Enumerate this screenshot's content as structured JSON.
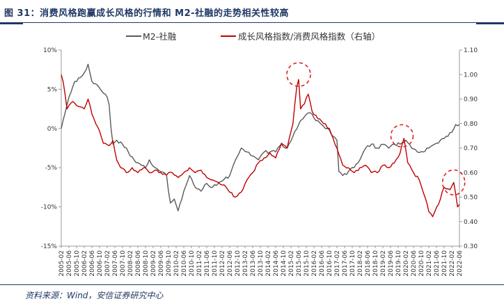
{
  "figure": {
    "title": "图 31：消费风格跑赢成长风格的行情和 M2-社融的走势相关性较高",
    "source": "资料来源：Wind，安信证券研究中心"
  },
  "chart_data": {
    "type": "line",
    "y_left": {
      "ylim": [
        -0.15,
        0.1
      ],
      "ticks": [
        "-15%",
        "-10%",
        "-5%",
        "0%",
        "5%",
        "10%"
      ],
      "tick_values": [
        -0.15,
        -0.1,
        -0.05,
        0.0,
        0.05,
        0.1
      ]
    },
    "y_right": {
      "ylim": [
        0.3,
        1.1
      ],
      "ticks": [
        "0.30",
        "0.40",
        "0.50",
        "0.60",
        "0.70",
        "0.80",
        "0.90",
        "1.00",
        "1.10"
      ],
      "tick_values": [
        0.3,
        0.4,
        0.5,
        0.6,
        0.7,
        0.8,
        0.9,
        1.0,
        1.1
      ]
    },
    "x_ticks": [
      "2005-02",
      "2005-06",
      "2005-10",
      "2006-02",
      "2006-06",
      "2006-10",
      "2007-02",
      "2007-06",
      "2007-10",
      "2008-02",
      "2008-06",
      "2008-10",
      "2009-02",
      "2009-06",
      "2009-10",
      "2010-02",
      "2010-06",
      "2010-10",
      "2011-02",
      "2011-06",
      "2011-10",
      "2012-02",
      "2012-06",
      "2012-10",
      "2013-02",
      "2013-06",
      "2013-10",
      "2014-02",
      "2014-06",
      "2014-10",
      "2015-02",
      "2015-06",
      "2015-10",
      "2016-02",
      "2016-06",
      "2016-10",
      "2017-02",
      "2017-06",
      "2017-10",
      "2018-02",
      "2018-06",
      "2018-10",
      "2019-02",
      "2019-06",
      "2019-10",
      "2020-02",
      "2020-06",
      "2020-10",
      "2021-02",
      "2021-06",
      "2021-10",
      "2022-02",
      "2022-06"
    ],
    "x_range": [
      "2005-02",
      "2022-06"
    ],
    "legend_position": "top",
    "grid": false,
    "annotations": "red dashed ellipses around local peaks near 2015-06, 2019-12 and 2022-03",
    "series": [
      {
        "name": "M2-社融",
        "axis": "left",
        "color": "#595959",
        "points": [
          [
            "2005-02",
            0.0
          ],
          [
            "2005-04",
            0.02
          ],
          [
            "2005-06",
            0.04
          ],
          [
            "2005-09",
            0.06
          ],
          [
            "2005-12",
            0.065
          ],
          [
            "2006-03",
            0.075
          ],
          [
            "2006-04",
            0.082
          ],
          [
            "2006-06",
            0.06
          ],
          [
            "2006-09",
            0.055
          ],
          [
            "2006-12",
            0.045
          ],
          [
            "2007-02",
            0.04
          ],
          [
            "2007-03",
            0.03
          ],
          [
            "2007-04",
            0.0
          ],
          [
            "2007-05",
            -0.02
          ],
          [
            "2007-07",
            -0.015
          ],
          [
            "2007-10",
            -0.02
          ],
          [
            "2008-01",
            -0.03
          ],
          [
            "2008-04",
            -0.04
          ],
          [
            "2008-07",
            -0.045
          ],
          [
            "2008-10",
            -0.05
          ],
          [
            "2008-12",
            -0.04
          ],
          [
            "2009-01",
            -0.045
          ],
          [
            "2009-03",
            -0.05
          ],
          [
            "2009-06",
            -0.055
          ],
          [
            "2009-09",
            -0.06
          ],
          [
            "2009-10",
            -0.08
          ],
          [
            "2009-11",
            -0.095
          ],
          [
            "2010-01",
            -0.09
          ],
          [
            "2010-03",
            -0.105
          ],
          [
            "2010-06",
            -0.08
          ],
          [
            "2010-09",
            -0.06
          ],
          [
            "2010-12",
            -0.075
          ],
          [
            "2011-03",
            -0.08
          ],
          [
            "2011-06",
            -0.07
          ],
          [
            "2011-09",
            -0.075
          ],
          [
            "2011-12",
            -0.07
          ],
          [
            "2012-03",
            -0.065
          ],
          [
            "2012-06",
            -0.06
          ],
          [
            "2012-09",
            -0.04
          ],
          [
            "2012-12",
            -0.025
          ],
          [
            "2013-03",
            -0.03
          ],
          [
            "2013-06",
            -0.035
          ],
          [
            "2013-09",
            -0.04
          ],
          [
            "2013-12",
            -0.03
          ],
          [
            "2014-03",
            -0.03
          ],
          [
            "2014-06",
            -0.03
          ],
          [
            "2014-09",
            -0.02
          ],
          [
            "2014-12",
            -0.025
          ],
          [
            "2015-03",
            -0.01
          ],
          [
            "2015-06",
            0.005
          ],
          [
            "2015-09",
            0.015
          ],
          [
            "2015-12",
            0.02
          ],
          [
            "2016-03",
            0.01
          ],
          [
            "2016-06",
            0.005
          ],
          [
            "2016-09",
            0.0
          ],
          [
            "2016-12",
            -0.01
          ],
          [
            "2017-02",
            -0.015
          ],
          [
            "2017-03",
            -0.055
          ],
          [
            "2017-05",
            -0.06
          ],
          [
            "2017-08",
            -0.055
          ],
          [
            "2017-11",
            -0.05
          ],
          [
            "2018-02",
            -0.04
          ],
          [
            "2018-05",
            -0.025
          ],
          [
            "2018-08",
            -0.02
          ],
          [
            "2018-11",
            -0.025
          ],
          [
            "2019-02",
            -0.02
          ],
          [
            "2019-05",
            -0.025
          ],
          [
            "2019-08",
            -0.02
          ],
          [
            "2019-11",
            -0.02
          ],
          [
            "2020-02",
            -0.015
          ],
          [
            "2020-05",
            -0.025
          ],
          [
            "2020-08",
            -0.03
          ],
          [
            "2020-11",
            -0.03
          ],
          [
            "2021-02",
            -0.025
          ],
          [
            "2021-05",
            -0.02
          ],
          [
            "2021-08",
            -0.015
          ],
          [
            "2021-11",
            -0.01
          ],
          [
            "2022-02",
            -0.005
          ],
          [
            "2022-04",
            0.005
          ],
          [
            "2022-06",
            0.005
          ]
        ]
      },
      {
        "name": "成长风格指数/消费风格指数（右轴）",
        "axis": "right",
        "color": "#c00000",
        "points": [
          [
            "2005-02",
            1.0
          ],
          [
            "2005-03",
            0.97
          ],
          [
            "2005-05",
            0.86
          ],
          [
            "2005-08",
            0.89
          ],
          [
            "2005-11",
            0.87
          ],
          [
            "2006-02",
            0.86
          ],
          [
            "2006-04",
            0.9
          ],
          [
            "2006-06",
            0.84
          ],
          [
            "2006-08",
            0.8
          ],
          [
            "2006-10",
            0.77
          ],
          [
            "2006-12",
            0.72
          ],
          [
            "2007-03",
            0.71
          ],
          [
            "2007-05",
            0.73
          ],
          [
            "2007-07",
            0.65
          ],
          [
            "2007-09",
            0.62
          ],
          [
            "2007-12",
            0.6
          ],
          [
            "2008-03",
            0.62
          ],
          [
            "2008-06",
            0.6
          ],
          [
            "2008-09",
            0.62
          ],
          [
            "2008-12",
            0.6
          ],
          [
            "2009-03",
            0.61
          ],
          [
            "2009-06",
            0.6
          ],
          [
            "2009-09",
            0.59
          ],
          [
            "2009-12",
            0.6
          ],
          [
            "2010-03",
            0.58
          ],
          [
            "2010-06",
            0.6
          ],
          [
            "2010-09",
            0.62
          ],
          [
            "2010-12",
            0.6
          ],
          [
            "2011-03",
            0.61
          ],
          [
            "2011-06",
            0.58
          ],
          [
            "2011-09",
            0.57
          ],
          [
            "2011-12",
            0.56
          ],
          [
            "2012-03",
            0.55
          ],
          [
            "2012-06",
            0.52
          ],
          [
            "2012-09",
            0.5
          ],
          [
            "2012-12",
            0.52
          ],
          [
            "2013-03",
            0.57
          ],
          [
            "2013-06",
            0.6
          ],
          [
            "2013-09",
            0.64
          ],
          [
            "2013-12",
            0.66
          ],
          [
            "2014-03",
            0.68
          ],
          [
            "2014-06",
            0.66
          ],
          [
            "2014-09",
            0.72
          ],
          [
            "2014-12",
            0.7
          ],
          [
            "2015-03",
            0.8
          ],
          [
            "2015-05",
            0.95
          ],
          [
            "2015-06",
            0.98
          ],
          [
            "2015-07",
            0.86
          ],
          [
            "2015-09",
            0.88
          ],
          [
            "2015-11",
            0.92
          ],
          [
            "2016-01",
            0.85
          ],
          [
            "2016-04",
            0.82
          ],
          [
            "2016-07",
            0.8
          ],
          [
            "2016-10",
            0.78
          ],
          [
            "2016-12",
            0.74
          ],
          [
            "2017-02",
            0.7
          ],
          [
            "2017-05",
            0.63
          ],
          [
            "2017-08",
            0.62
          ],
          [
            "2017-11",
            0.6
          ],
          [
            "2018-02",
            0.62
          ],
          [
            "2018-05",
            0.63
          ],
          [
            "2018-08",
            0.6
          ],
          [
            "2018-11",
            0.6
          ],
          [
            "2019-02",
            0.63
          ],
          [
            "2019-05",
            0.62
          ],
          [
            "2019-08",
            0.64
          ],
          [
            "2019-11",
            0.68
          ],
          [
            "2020-01",
            0.74
          ],
          [
            "2020-03",
            0.64
          ],
          [
            "2020-06",
            0.6
          ],
          [
            "2020-09",
            0.57
          ],
          [
            "2020-12",
            0.5
          ],
          [
            "2021-02",
            0.44
          ],
          [
            "2021-04",
            0.42
          ],
          [
            "2021-07",
            0.47
          ],
          [
            "2021-10",
            0.54
          ],
          [
            "2022-01",
            0.53
          ],
          [
            "2022-03",
            0.56
          ],
          [
            "2022-05",
            0.46
          ],
          [
            "2022-06",
            0.47
          ]
        ]
      }
    ]
  }
}
